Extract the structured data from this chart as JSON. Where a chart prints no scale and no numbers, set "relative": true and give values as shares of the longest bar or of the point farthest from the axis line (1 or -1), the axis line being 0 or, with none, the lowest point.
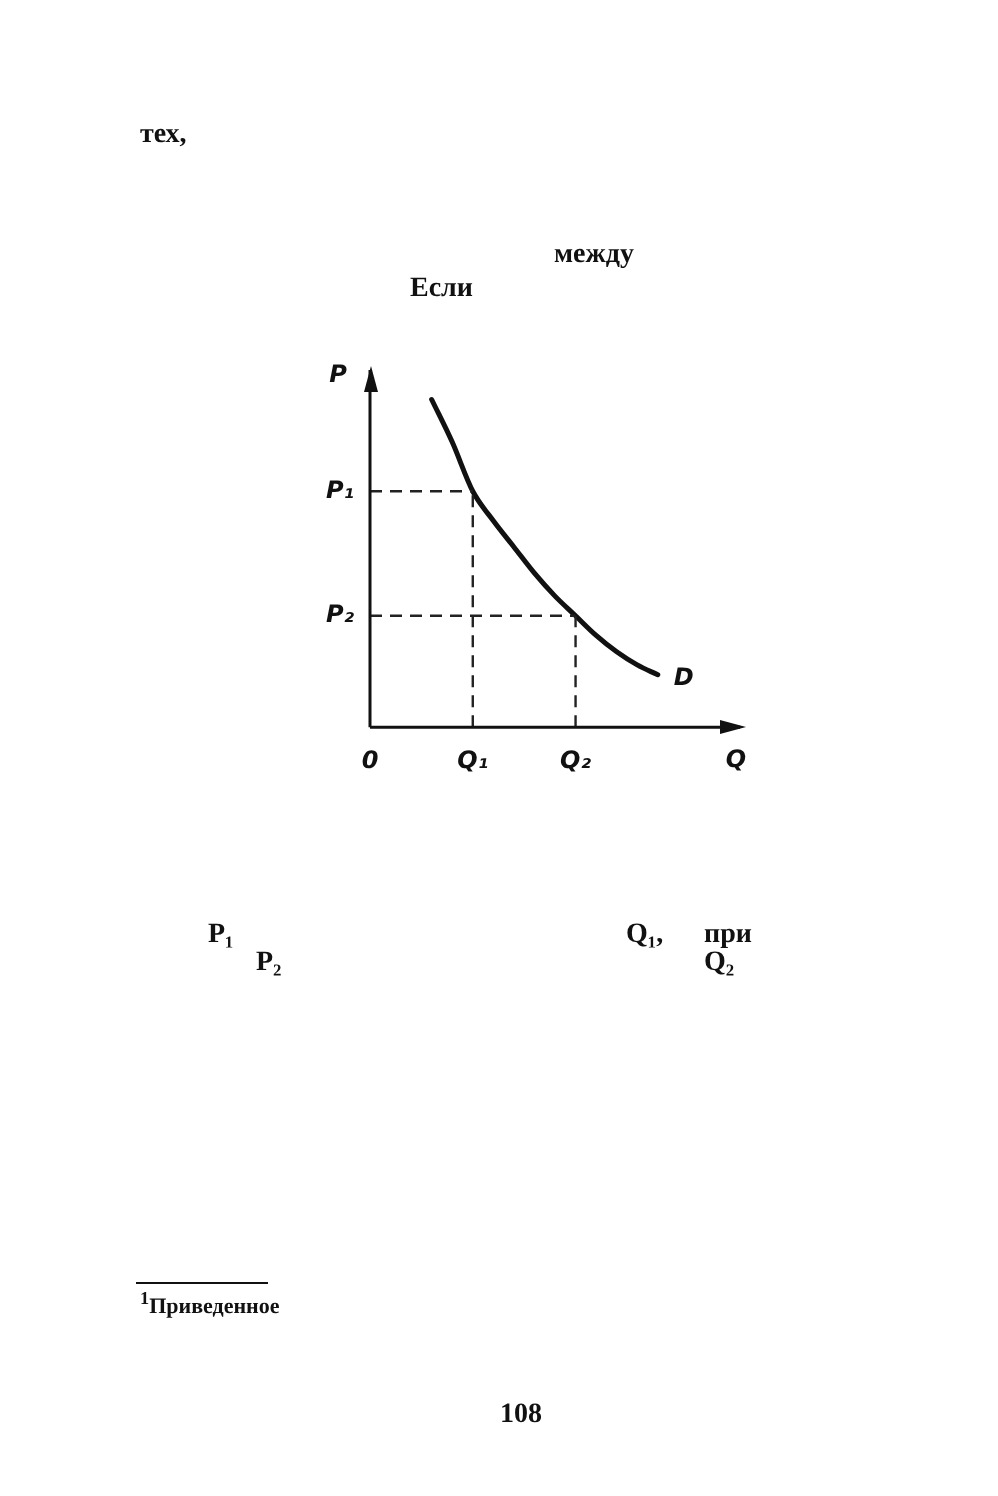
{
  "chart_data": {
    "type": "line",
    "relative": true,
    "xlabel": "Q",
    "ylabel": "P",
    "legend": false,
    "marker": "none",
    "categories": [
      "0",
      null,
      null,
      null,
      null,
      "Q₁",
      null,
      null,
      null,
      null,
      "Q₂",
      null,
      null,
      null,
      null,
      null,
      null,
      null,
      null
    ],
    "series": [
      {
        "name": "D",
        "color": "#111111",
        "values": [
          null,
          null,
          null,
          1,
          0.87,
          0.72,
          0.63,
          0.55,
          0.47,
          0.4,
          0.34,
          0.28,
          0.23,
          0.19,
          0.16,
          null,
          null,
          null,
          null
        ]
      }
    ],
    "ref_lines": [
      {
        "axis": "y",
        "value": 0.72,
        "label": "P₁",
        "color": "#222222",
        "line_style": "dashed"
      },
      {
        "axis": "y",
        "value": 0.34,
        "label": "P₂",
        "color": "#222222",
        "line_style": "dashed"
      },
      {
        "axis": "x",
        "value": "Q₁",
        "color": "#222222",
        "line_style": "dashed"
      },
      {
        "axis": "x",
        "value": "Q₂",
        "color": "#222222",
        "line_style": "dashed"
      }
    ],
    "annotations": [
      "тех,",
      "между",
      "Если",
      "P₁",
      "P₂",
      "Q₁,",
      "при",
      "Q₂",
      "$^{1}$Приведенное",
      "108"
    ]
  }
}
